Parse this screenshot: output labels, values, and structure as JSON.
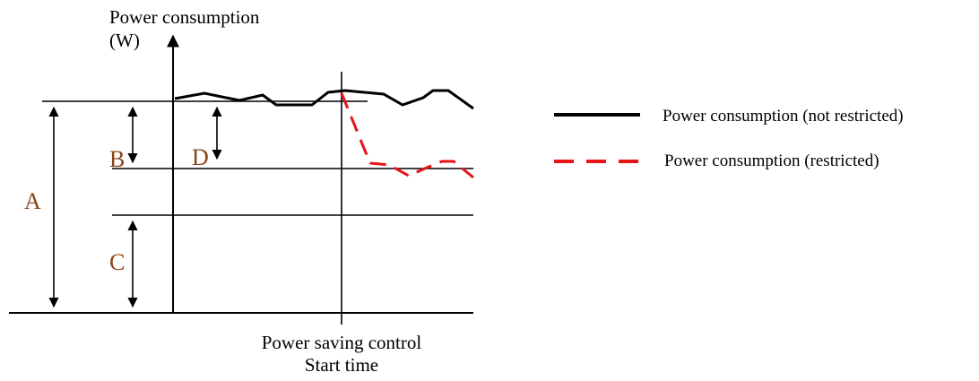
{
  "y_axis_label_line1": "Power consumption",
  "y_axis_label_line2": "(W)",
  "x_marker_label_line1": "Power saving control",
  "x_marker_label_line2": "Start time",
  "dimension_labels": {
    "A": "A",
    "B": "B",
    "C": "C",
    "D": "D"
  },
  "legend": {
    "not_restricted": "Power consumption (not restricted)",
    "restricted": "Power consumption (restricted)"
  },
  "colors": {
    "axis": "#000000",
    "not_restricted_line": "#000000",
    "restricted_line": "#e8141b",
    "dimension_label": "#8b4513"
  }
}
